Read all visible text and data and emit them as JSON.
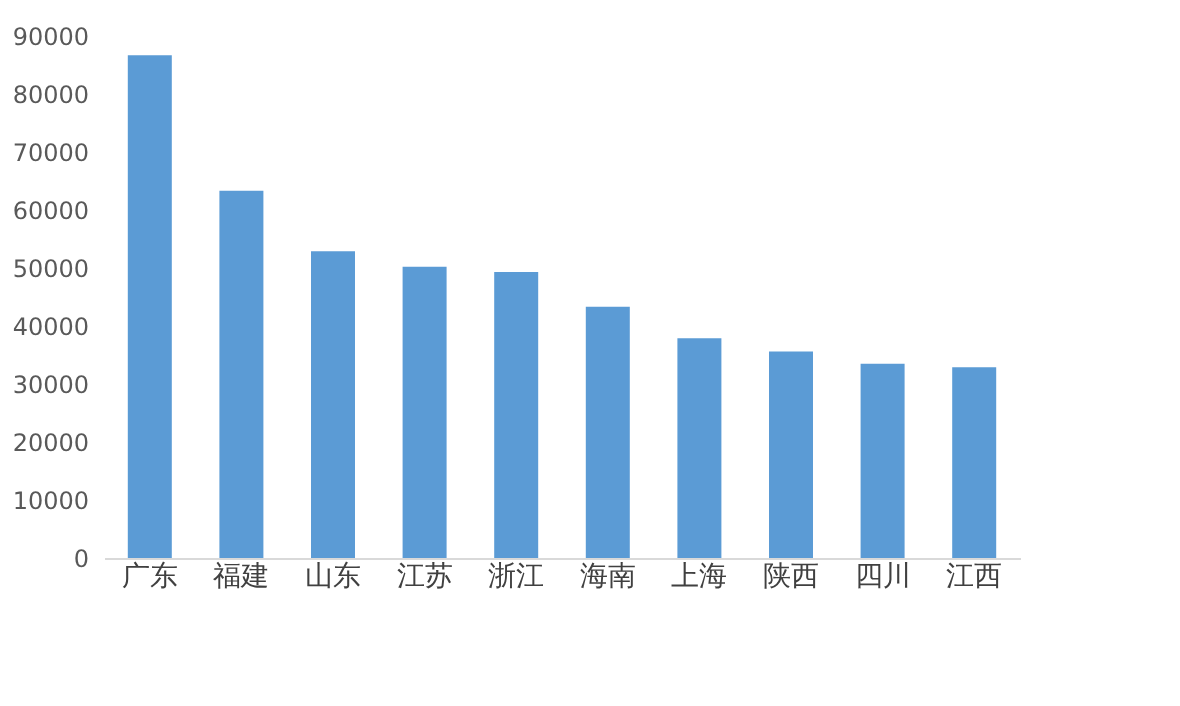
{
  "chart_data": {
    "type": "bar",
    "categories": [
      "广东",
      "福建",
      "山东",
      "江苏",
      "浙江",
      "海南",
      "上海",
      "陕西",
      "四川",
      "江西"
    ],
    "values": [
      86700,
      63300,
      52900,
      50200,
      49300,
      43300,
      37900,
      35600,
      33500,
      32900
    ],
    "color": "#5b9bd5",
    "ylim": [
      0,
      90000
    ],
    "yticks": [
      0,
      10000,
      20000,
      30000,
      40000,
      50000,
      60000,
      70000,
      80000,
      90000
    ],
    "grid": false
  }
}
